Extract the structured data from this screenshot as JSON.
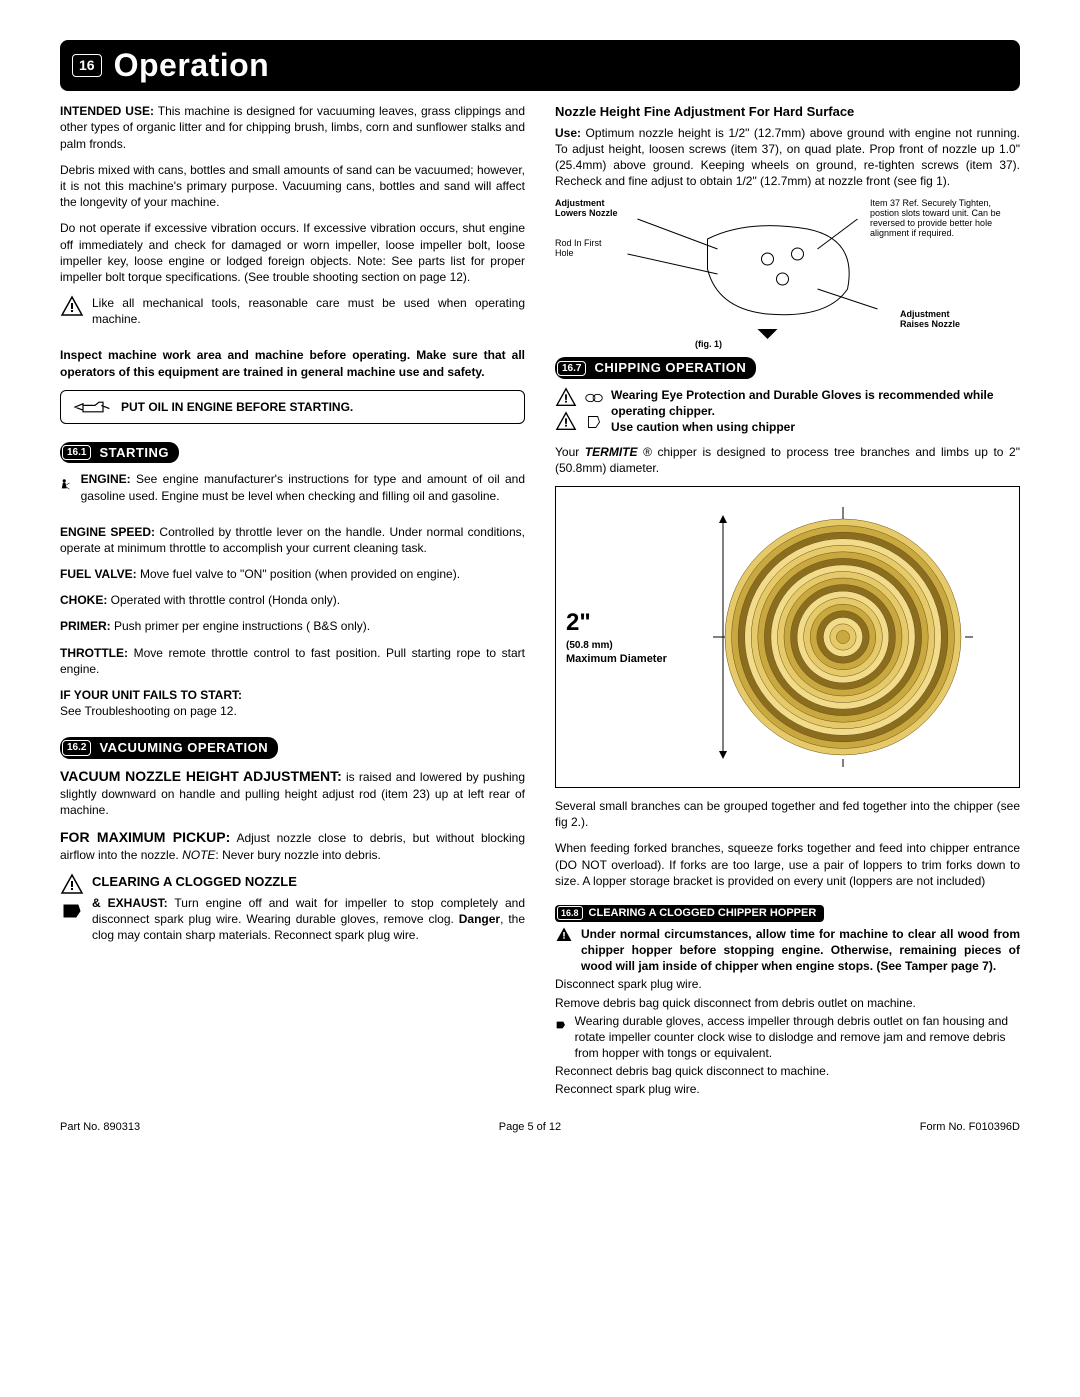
{
  "header": {
    "num": "16",
    "title": "Operation"
  },
  "left": {
    "intended_label": "INTENDED USE:",
    "intended": " This machine is designed for vacuuming leaves, grass clippings and other types of organic litter and for chipping brush, limbs, corn and sunflower stalks and palm fronds.",
    "debris": "Debris mixed with cans, bottles and small amounts of sand can be vacuumed; however, it is not this machine's primary purpose. Vacuuming cans, bottles and sand will affect the longevity of your machine.",
    "vibration": "Do not operate if excessive vibration occurs. If excessive vibration occurs, shut engine off immediately and check for damaged or worn impeller, loose impeller bolt, loose impeller key, loose engine or lodged foreign objects. Note: See parts list for proper impeller bolt torque specifications. (See trouble shooting section on page 12).",
    "care": "Like all mechanical tools, reasonable care must be used when operating machine.",
    "inspect": "Inspect machine work area and machine before operating. Make sure that all operators of this equipment are trained in general machine use and safety.",
    "oil": "PUT OIL IN ENGINE BEFORE STARTING.",
    "starting": {
      "num": "16.1",
      "title": "STARTING"
    },
    "engine_label": "ENGINE:",
    "engine": " See engine manufacturer's instructions for type and amount of oil and gasoline used. Engine must be level when checking and filling oil and gasoline.",
    "speed_label": "ENGINE SPEED:",
    "speed": " Controlled by throttle lever on the handle. Under normal conditions, operate at minimum throttle to accomplish your current cleaning task.",
    "fuel_label": "FUEL VALVE:",
    "fuel": " Move fuel valve to \"ON\" position (when provided on engine).",
    "choke_label": "CHOKE:",
    "choke": " Operated with throttle control (Honda only).",
    "primer_label": "PRIMER:",
    "primer": " Push primer per engine instructions ( B&S only).",
    "throttle_label": "THROTTLE:",
    "throttle": " Move remote throttle control to fast position. Pull starting rope to start engine.",
    "fails_label": "IF YOUR UNIT FAILS TO START:",
    "fails": "See Troubleshooting on page 12.",
    "vacuum": {
      "num": "16.2",
      "title": "VACUUMING OPERATION"
    },
    "nozzle_label": "VACUUM NOZZLE HEIGHT ADJUSTMENT:",
    "nozzle": " is raised and lowered by pushing slightly downward on handle and pulling height adjust rod (item 23) up at left rear of machine.",
    "pickup_label": "FOR MAXIMUM PICKUP:",
    "pickup": " Adjust nozzle close to debris, but without blocking airflow into the nozzle. ",
    "pickup_note_label": "NOTE",
    "pickup_note": ": Never bury nozzle into debris.",
    "clogged_title": "CLEARING A CLOGGED NOZZLE",
    "exhaust_label": "& EXHAUST:",
    "exhaust": " Turn engine off and wait for impeller to stop completely and disconnect spark plug wire. Wearing durable gloves, remove clog. ",
    "danger_label": "Danger",
    "exhaust2": ", the clog may contain sharp materials. Reconnect spark plug wire."
  },
  "right": {
    "nozzle_title": "Nozzle Height Fine Adjustment For Hard Surface",
    "use_label": "Use:",
    "use": " Optimum nozzle height is 1/2\" (12.7mm) above ground with engine not running. To adjust height, loosen screws (item 37), on quad plate. Prop front of nozzle up 1.0\" (25.4mm) above ground. Keeping wheels on ground, re-tighten screws (item 37). Recheck and fine adjust to obtain 1/2\" (12.7mm) at nozzle front (see fig 1).",
    "adj_lowers": "Adjustment Lowers Nozzle",
    "rod_in": "Rod In First Hole",
    "item37": "Item 37 Ref. Securely Tighten, postion slots toward unit. Can be reversed to provide better hole alignment if required.",
    "adj_raises": "Adjustment Raises Nozzle",
    "fig1": "(fig. 1)",
    "chipping": {
      "num": "16.7",
      "title": "CHIPPING OPERATION"
    },
    "eye": "Wearing Eye Protection and Durable Gloves is recommended while operating chipper.",
    "caution": "Use caution when using chipper",
    "termite1": "Your ",
    "termite_label": "TERMITE",
    "termite2": " ® chipper is designed to process tree branches and limbs up to 2\" (50.8mm) diameter.",
    "diameter_main": "2\"",
    "diameter_mm": "(50.8 mm)",
    "diameter_label": "Maximum Diameter",
    "grouped": "Several small branches can be grouped together and fed together into the chipper (see fig 2.).",
    "forked": "When feeding forked branches, squeeze forks together and feed into chipper entrance (DO NOT overload). If forks are too large, use a pair of loppers to trim forks down to size. A lopper storage bracket is provided on every unit (loppers are not included)",
    "clearing": {
      "num": "16.8",
      "title": "CLEARING A CLOGGED CHIPPER HOPPER"
    },
    "normal": "Under normal circumstances, allow time for machine to clear all wood from chipper hopper before stopping engine. Otherwise, remaining pieces of wood will jam inside of chipper when engine stops. (See Tamper page 7).",
    "disconnect": "Disconnect spark plug wire.",
    "remove_bag": "Remove debris bag quick disconnect from debris outlet on machine.",
    "gloves": "Wearing durable gloves, access impeller through debris outlet on fan housing and rotate impeller counter clock wise to dislodge and remove jam and remove debris from hopper with tongs or equivalent.",
    "reconnect1": "Reconnect debris bag quick disconnect to machine.",
    "reconnect2": "Reconnect spark plug wire."
  },
  "footer": {
    "part": "Part No. 890313",
    "page": "Page 5 of 12",
    "form": "Form No. F010396D"
  },
  "style": {
    "ring_colors": [
      "#8a6d1e",
      "#c9a83f",
      "#e6c968",
      "#f2dc8c"
    ],
    "ring_count": 18
  }
}
